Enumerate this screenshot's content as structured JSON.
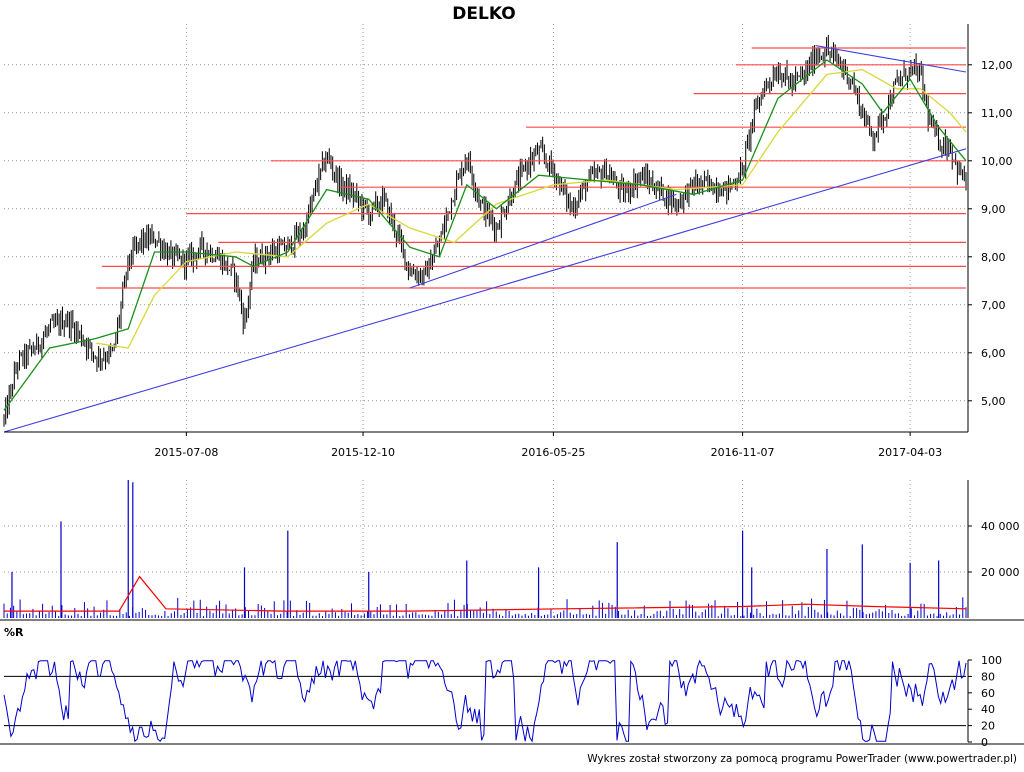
{
  "title": "DELKO",
  "footer": "Wykres został stworzony za pomocą programu PowerTrader (www.powertrader.pl)",
  "colors": {
    "background": "#ffffff",
    "candles": "#000000",
    "sma_short": "#1a8f1a",
    "sma_long": "#d8d83a",
    "support_lines": "#ff4a4a",
    "trend_lines": "#4040e0",
    "volume_bars": "#0000cc",
    "volume_avg": "#ff0000",
    "willr_line": "#0000cc",
    "grid": "#9a9a9a"
  },
  "chart_data": [
    {
      "type": "candlestick",
      "panel": "price",
      "title": "DELKO",
      "x_ticks": [
        "2015-07-08",
        "2015-12-10",
        "2016-05-25",
        "2016-11-07",
        "2017-04-03"
      ],
      "y_ticks": [
        "5,00",
        "6,00",
        "7,00",
        "8,00",
        "9,00",
        "10,00",
        "11,00",
        "12,00"
      ],
      "ylim": [
        4.35,
        12.85
      ],
      "grid": true,
      "y_axis_side": "right",
      "series_close": [
        {
          "x": "2015-01-29",
          "y": 4.6
        },
        {
          "x": "2015-02-10",
          "y": 5.8
        },
        {
          "x": "2015-02-25",
          "y": 6.1
        },
        {
          "x": "2015-03-10",
          "y": 6.5
        },
        {
          "x": "2015-03-25",
          "y": 6.7
        },
        {
          "x": "2015-04-08",
          "y": 6.3
        },
        {
          "x": "2015-04-20",
          "y": 5.9
        },
        {
          "x": "2015-05-05",
          "y": 6.0
        },
        {
          "x": "2015-05-18",
          "y": 7.9
        },
        {
          "x": "2015-05-28",
          "y": 8.3
        },
        {
          "x": "2015-06-10",
          "y": 8.4
        },
        {
          "x": "2015-06-24",
          "y": 8.0
        },
        {
          "x": "2015-07-08",
          "y": 7.9
        },
        {
          "x": "2015-07-22",
          "y": 8.2
        },
        {
          "x": "2015-08-05",
          "y": 8.0
        },
        {
          "x": "2015-08-20",
          "y": 7.6
        },
        {
          "x": "2015-08-28",
          "y": 6.6
        },
        {
          "x": "2015-09-05",
          "y": 7.9
        },
        {
          "x": "2015-09-20",
          "y": 8.1
        },
        {
          "x": "2015-10-05",
          "y": 8.2
        },
        {
          "x": "2015-10-20",
          "y": 8.6
        },
        {
          "x": "2015-10-30",
          "y": 9.5
        },
        {
          "x": "2015-11-08",
          "y": 10.1
        },
        {
          "x": "2015-11-20",
          "y": 9.5
        },
        {
          "x": "2015-12-01",
          "y": 9.3
        },
        {
          "x": "2015-12-15",
          "y": 8.9
        },
        {
          "x": "2015-12-28",
          "y": 9.2
        },
        {
          "x": "2016-01-10",
          "y": 8.4
        },
        {
          "x": "2016-01-20",
          "y": 7.7
        },
        {
          "x": "2016-02-02",
          "y": 7.6
        },
        {
          "x": "2016-02-15",
          "y": 8.3
        },
        {
          "x": "2016-02-28",
          "y": 9.4
        },
        {
          "x": "2016-03-10",
          "y": 10.1
        },
        {
          "x": "2016-03-22",
          "y": 9.1
        },
        {
          "x": "2016-04-05",
          "y": 8.6
        },
        {
          "x": "2016-04-18",
          "y": 9.3
        },
        {
          "x": "2016-05-01",
          "y": 9.9
        },
        {
          "x": "2016-05-12",
          "y": 10.2
        },
        {
          "x": "2016-05-25",
          "y": 9.8
        },
        {
          "x": "2016-06-10",
          "y": 9.0
        },
        {
          "x": "2016-06-25",
          "y": 9.6
        },
        {
          "x": "2016-07-10",
          "y": 9.8
        },
        {
          "x": "2016-07-25",
          "y": 9.3
        },
        {
          "x": "2016-08-10",
          "y": 9.7
        },
        {
          "x": "2016-08-25",
          "y": 9.4
        },
        {
          "x": "2016-09-10",
          "y": 9.1
        },
        {
          "x": "2016-09-25",
          "y": 9.5
        },
        {
          "x": "2016-10-10",
          "y": 9.5
        },
        {
          "x": "2016-10-25",
          "y": 9.4
        },
        {
          "x": "2016-11-07",
          "y": 9.8
        },
        {
          "x": "2016-11-15",
          "y": 10.8
        },
        {
          "x": "2016-11-25",
          "y": 11.5
        },
        {
          "x": "2016-12-08",
          "y": 11.9
        },
        {
          "x": "2016-12-20",
          "y": 11.6
        },
        {
          "x": "2017-01-01",
          "y": 11.8
        },
        {
          "x": "2017-01-10",
          "y": 12.2
        },
        {
          "x": "2017-01-20",
          "y": 12.3
        },
        {
          "x": "2017-02-01",
          "y": 12.0
        },
        {
          "x": "2017-02-10",
          "y": 11.7
        },
        {
          "x": "2017-02-20",
          "y": 11.0
        },
        {
          "x": "2017-03-01",
          "y": 10.5
        },
        {
          "x": "2017-03-10",
          "y": 10.9
        },
        {
          "x": "2017-03-22",
          "y": 11.6
        },
        {
          "x": "2017-04-03",
          "y": 11.9
        },
        {
          "x": "2017-04-12",
          "y": 11.8
        },
        {
          "x": "2017-04-20",
          "y": 10.8
        },
        {
          "x": "2017-04-28",
          "y": 10.4
        },
        {
          "x": "2017-05-08",
          "y": 10.3
        },
        {
          "x": "2017-05-15",
          "y": 9.8
        },
        {
          "x": "2017-05-22",
          "y": 9.6
        }
      ],
      "sma_short": [
        {
          "x": "2015-01-29",
          "y": 4.8
        },
        {
          "x": "2015-03-10",
          "y": 6.1
        },
        {
          "x": "2015-04-20",
          "y": 6.3
        },
        {
          "x": "2015-05-18",
          "y": 6.5
        },
        {
          "x": "2015-06-10",
          "y": 8.1
        },
        {
          "x": "2015-07-08",
          "y": 8.1
        },
        {
          "x": "2015-08-20",
          "y": 8.0
        },
        {
          "x": "2015-09-05",
          "y": 7.8
        },
        {
          "x": "2015-10-05",
          "y": 8.1
        },
        {
          "x": "2015-11-08",
          "y": 9.4
        },
        {
          "x": "2015-12-15",
          "y": 9.2
        },
        {
          "x": "2016-01-20",
          "y": 8.2
        },
        {
          "x": "2016-02-15",
          "y": 8.0
        },
        {
          "x": "2016-03-10",
          "y": 9.5
        },
        {
          "x": "2016-04-05",
          "y": 9.0
        },
        {
          "x": "2016-05-12",
          "y": 9.7
        },
        {
          "x": "2016-06-25",
          "y": 9.6
        },
        {
          "x": "2016-08-10",
          "y": 9.5
        },
        {
          "x": "2016-09-25",
          "y": 9.3
        },
        {
          "x": "2016-11-07",
          "y": 9.6
        },
        {
          "x": "2016-12-08",
          "y": 11.3
        },
        {
          "x": "2017-01-20",
          "y": 12.1
        },
        {
          "x": "2017-02-20",
          "y": 11.6
        },
        {
          "x": "2017-03-10",
          "y": 11.0
        },
        {
          "x": "2017-04-03",
          "y": 11.7
        },
        {
          "x": "2017-04-28",
          "y": 10.7
        },
        {
          "x": "2017-05-22",
          "y": 10.0
        }
      ],
      "sma_long": [
        {
          "x": "2015-04-20",
          "y": 6.2
        },
        {
          "x": "2015-05-18",
          "y": 6.1
        },
        {
          "x": "2015-06-10",
          "y": 7.2
        },
        {
          "x": "2015-07-08",
          "y": 7.9
        },
        {
          "x": "2015-08-20",
          "y": 8.1
        },
        {
          "x": "2015-10-05",
          "y": 8.0
        },
        {
          "x": "2015-11-08",
          "y": 8.7
        },
        {
          "x": "2015-12-15",
          "y": 9.1
        },
        {
          "x": "2016-01-20",
          "y": 8.6
        },
        {
          "x": "2016-02-28",
          "y": 8.3
        },
        {
          "x": "2016-04-05",
          "y": 9.1
        },
        {
          "x": "2016-05-25",
          "y": 9.5
        },
        {
          "x": "2016-07-10",
          "y": 9.6
        },
        {
          "x": "2016-09-10",
          "y": 9.4
        },
        {
          "x": "2016-11-07",
          "y": 9.5
        },
        {
          "x": "2016-12-08",
          "y": 10.6
        },
        {
          "x": "2017-01-20",
          "y": 11.8
        },
        {
          "x": "2017-02-20",
          "y": 11.9
        },
        {
          "x": "2017-03-22",
          "y": 11.5
        },
        {
          "x": "2017-04-12",
          "y": 11.5
        },
        {
          "x": "2017-05-08",
          "y": 11.0
        },
        {
          "x": "2017-05-22",
          "y": 10.6
        }
      ],
      "horizontal_levels": [
        {
          "y": 12.35,
          "from": "2016-11-15"
        },
        {
          "y": 12.0,
          "from": "2016-11-01"
        },
        {
          "y": 11.4,
          "from": "2016-09-25"
        },
        {
          "y": 10.7,
          "from": "2016-05-01"
        },
        {
          "y": 10.0,
          "from": "2015-09-20"
        },
        {
          "y": 9.45,
          "from": "2015-11-20"
        },
        {
          "y": 8.9,
          "from": "2015-07-08"
        },
        {
          "y": 8.3,
          "from": "2015-08-05"
        },
        {
          "y": 7.8,
          "from": "2015-04-25"
        },
        {
          "y": 7.35,
          "from": "2015-04-20"
        }
      ],
      "trend_lines": [
        {
          "x1": "2015-01-29",
          "y1": 4.35,
          "x2": "2017-05-22",
          "y2": 10.25
        },
        {
          "x1": "2016-01-20",
          "y1": 7.35,
          "x2": "2016-09-10",
          "y2": 9.3
        },
        {
          "x1": "2017-01-10",
          "y1": 12.4,
          "x2": "2017-05-22",
          "y2": 11.85
        }
      ]
    },
    {
      "type": "bar",
      "panel": "volume",
      "y_ticks": [
        "20 000",
        "40 000"
      ],
      "ylim": [
        0,
        60000
      ],
      "grid": true,
      "y_axis_side": "right",
      "spikes": [
        {
          "x": "2015-02-05",
          "y": 20000
        },
        {
          "x": "2015-03-20",
          "y": 42000
        },
        {
          "x": "2015-05-18",
          "y": 60000
        },
        {
          "x": "2015-05-22",
          "y": 59000
        },
        {
          "x": "2015-08-28",
          "y": 22000
        },
        {
          "x": "2015-10-05",
          "y": 38000
        },
        {
          "x": "2015-12-15",
          "y": 20000
        },
        {
          "x": "2016-03-10",
          "y": 25000
        },
        {
          "x": "2016-05-12",
          "y": 22000
        },
        {
          "x": "2016-07-20",
          "y": 33000
        },
        {
          "x": "2016-11-07",
          "y": 38000
        },
        {
          "x": "2016-11-15",
          "y": 22000
        },
        {
          "x": "2017-01-20",
          "y": 30000
        },
        {
          "x": "2017-02-20",
          "y": 32000
        },
        {
          "x": "2017-04-03",
          "y": 24000
        },
        {
          "x": "2017-04-28",
          "y": 25000
        }
      ],
      "avg_line": [
        {
          "x": "2015-01-29",
          "y": 3000
        },
        {
          "x": "2015-05-10",
          "y": 3000
        },
        {
          "x": "2015-05-28",
          "y": 18000
        },
        {
          "x": "2015-06-20",
          "y": 4000
        },
        {
          "x": "2015-10-01",
          "y": 3000
        },
        {
          "x": "2016-01-20",
          "y": 3000
        },
        {
          "x": "2016-06-01",
          "y": 4000
        },
        {
          "x": "2016-11-07",
          "y": 5000
        },
        {
          "x": "2017-01-01",
          "y": 6000
        },
        {
          "x": "2017-03-01",
          "y": 5000
        },
        {
          "x": "2017-05-22",
          "y": 4000
        }
      ]
    },
    {
      "type": "line",
      "panel": "williams_r",
      "label": "%R",
      "y_ticks": [
        "0",
        "20",
        "40",
        "60",
        "80",
        "100"
      ],
      "ylim": [
        0,
        100
      ],
      "reference_lines": [
        20,
        80
      ],
      "grid": true,
      "y_axis_side": "right"
    }
  ]
}
